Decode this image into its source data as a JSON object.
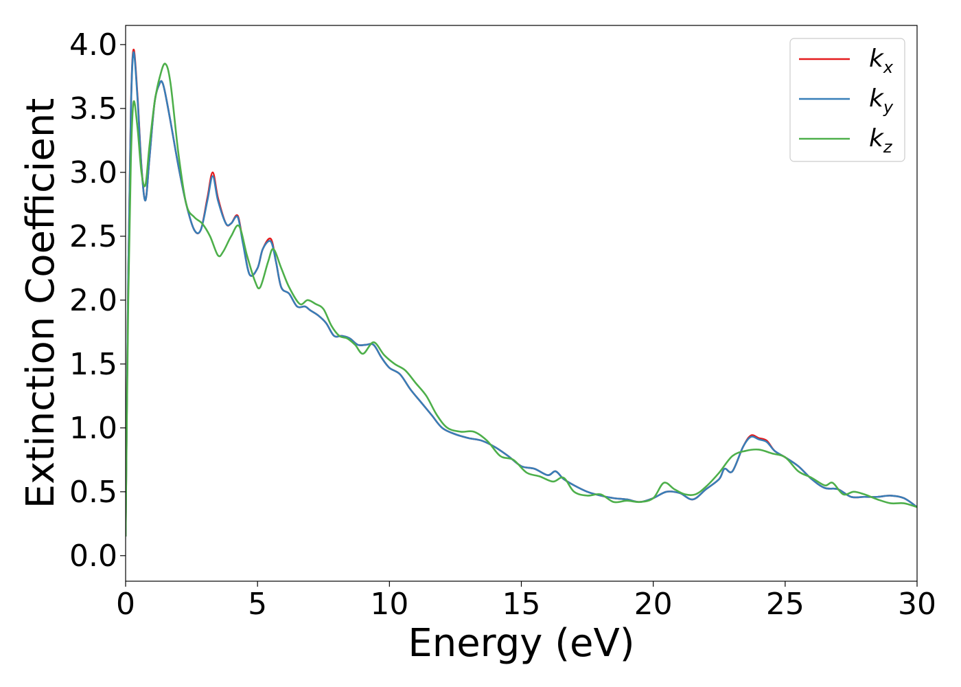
{
  "chart_data": {
    "type": "line",
    "xlabel": "Energy (eV)",
    "ylabel": "Extinction Coefficient",
    "xlim": [
      0,
      30
    ],
    "ylim": [
      -0.2,
      4.15
    ],
    "xticks": [
      0,
      5,
      10,
      15,
      20,
      25,
      30
    ],
    "xtick_labels": [
      "0",
      "5",
      "10",
      "15",
      "20",
      "25",
      "30"
    ],
    "yticks": [
      0.0,
      0.5,
      1.0,
      1.5,
      2.0,
      2.5,
      3.0,
      3.5,
      4.0
    ],
    "ytick_labels": [
      "0.0",
      "0.5",
      "1.0",
      "1.5",
      "2.0",
      "2.5",
      "3.0",
      "3.5",
      "4.0"
    ],
    "grid": false,
    "legend": {
      "placement": "top-right",
      "entries": [
        {
          "base": "k",
          "sub": "x",
          "color": "#e41a1c"
        },
        {
          "base": "k",
          "sub": "y",
          "color": "#377eb8"
        },
        {
          "base": "k",
          "sub": "z",
          "color": "#4daf4a"
        }
      ]
    },
    "series": [
      {
        "name": "k_x",
        "color": "#e41a1c",
        "x": [
          0,
          0.1,
          0.2,
          0.3,
          0.45,
          0.6,
          0.75,
          0.9,
          1.1,
          1.3,
          1.4,
          1.5,
          1.7,
          2.0,
          2.3,
          2.6,
          2.85,
          3.1,
          3.3,
          3.5,
          3.8,
          4.0,
          4.25,
          4.45,
          4.7,
          5.0,
          5.2,
          5.5,
          5.7,
          5.9,
          6.2,
          6.5,
          6.8,
          7.0,
          7.3,
          7.6,
          7.9,
          8.2,
          8.5,
          8.8,
          9.1,
          9.4,
          9.7,
          10.0,
          10.4,
          10.8,
          11.2,
          11.6,
          12.0,
          12.5,
          13.0,
          13.5,
          14.0,
          14.5,
          15.0,
          15.5,
          16.0,
          16.3,
          16.6,
          17.0,
          17.5,
          18.0,
          18.5,
          19.0,
          19.5,
          20.0,
          20.5,
          21.0,
          21.5,
          22.0,
          22.5,
          22.7,
          23.0,
          23.4,
          23.7,
          24.0,
          24.3,
          24.6,
          25.0,
          25.5,
          26.0,
          26.5,
          27.0,
          27.5,
          28.0,
          28.5,
          29.0,
          29.5,
          30.0
        ],
        "y": [
          0.15,
          2.2,
          3.5,
          3.96,
          3.6,
          3.05,
          2.78,
          3.1,
          3.55,
          3.7,
          3.7,
          3.62,
          3.4,
          3.05,
          2.75,
          2.55,
          2.55,
          2.8,
          3.0,
          2.8,
          2.6,
          2.6,
          2.66,
          2.45,
          2.2,
          2.25,
          2.4,
          2.48,
          2.3,
          2.1,
          2.05,
          1.95,
          1.95,
          1.92,
          1.88,
          1.82,
          1.72,
          1.72,
          1.7,
          1.65,
          1.65,
          1.65,
          1.55,
          1.47,
          1.42,
          1.3,
          1.2,
          1.1,
          1.0,
          0.95,
          0.92,
          0.9,
          0.85,
          0.78,
          0.7,
          0.68,
          0.63,
          0.66,
          0.6,
          0.55,
          0.5,
          0.47,
          0.45,
          0.44,
          0.42,
          0.45,
          0.5,
          0.49,
          0.44,
          0.52,
          0.6,
          0.68,
          0.66,
          0.85,
          0.94,
          0.92,
          0.9,
          0.82,
          0.77,
          0.7,
          0.6,
          0.53,
          0.52,
          0.46,
          0.46,
          0.46,
          0.47,
          0.45,
          0.38
        ]
      },
      {
        "name": "k_y",
        "color": "#377eb8",
        "x": [
          0,
          0.1,
          0.2,
          0.3,
          0.45,
          0.6,
          0.75,
          0.9,
          1.1,
          1.3,
          1.4,
          1.5,
          1.7,
          2.0,
          2.3,
          2.6,
          2.85,
          3.1,
          3.3,
          3.5,
          3.8,
          4.0,
          4.25,
          4.45,
          4.7,
          5.0,
          5.2,
          5.5,
          5.7,
          5.9,
          6.2,
          6.5,
          6.8,
          7.0,
          7.3,
          7.6,
          7.9,
          8.2,
          8.5,
          8.8,
          9.1,
          9.4,
          9.7,
          10.0,
          10.4,
          10.8,
          11.2,
          11.6,
          12.0,
          12.5,
          13.0,
          13.5,
          14.0,
          14.5,
          15.0,
          15.5,
          16.0,
          16.3,
          16.6,
          17.0,
          17.5,
          18.0,
          18.5,
          19.0,
          19.5,
          20.0,
          20.5,
          21.0,
          21.5,
          22.0,
          22.5,
          22.7,
          23.0,
          23.4,
          23.7,
          24.0,
          24.3,
          24.6,
          25.0,
          25.5,
          26.0,
          26.5,
          27.0,
          27.5,
          28.0,
          28.5,
          29.0,
          29.5,
          30.0
        ],
        "y": [
          0.15,
          2.2,
          3.48,
          3.94,
          3.58,
          3.04,
          2.78,
          3.1,
          3.55,
          3.7,
          3.7,
          3.62,
          3.4,
          3.05,
          2.75,
          2.55,
          2.55,
          2.78,
          2.97,
          2.78,
          2.6,
          2.6,
          2.65,
          2.44,
          2.2,
          2.25,
          2.4,
          2.46,
          2.3,
          2.1,
          2.05,
          1.95,
          1.95,
          1.92,
          1.88,
          1.82,
          1.72,
          1.72,
          1.7,
          1.65,
          1.65,
          1.65,
          1.55,
          1.47,
          1.42,
          1.3,
          1.2,
          1.1,
          1.0,
          0.95,
          0.92,
          0.9,
          0.85,
          0.78,
          0.7,
          0.68,
          0.63,
          0.66,
          0.6,
          0.55,
          0.5,
          0.47,
          0.45,
          0.44,
          0.42,
          0.45,
          0.5,
          0.49,
          0.44,
          0.52,
          0.6,
          0.68,
          0.66,
          0.85,
          0.93,
          0.91,
          0.89,
          0.82,
          0.77,
          0.7,
          0.6,
          0.53,
          0.52,
          0.46,
          0.46,
          0.46,
          0.47,
          0.45,
          0.38
        ]
      },
      {
        "name": "k_z",
        "color": "#4daf4a",
        "x": [
          0,
          0.1,
          0.2,
          0.3,
          0.45,
          0.6,
          0.75,
          0.9,
          1.1,
          1.3,
          1.5,
          1.7,
          2.0,
          2.3,
          2.6,
          2.9,
          3.2,
          3.5,
          3.7,
          4.0,
          4.3,
          4.6,
          4.9,
          5.1,
          5.4,
          5.6,
          5.9,
          6.2,
          6.6,
          6.9,
          7.2,
          7.5,
          7.8,
          8.1,
          8.4,
          8.7,
          9.0,
          9.4,
          9.8,
          10.2,
          10.6,
          11.0,
          11.4,
          11.8,
          12.2,
          12.7,
          13.2,
          13.7,
          14.2,
          14.7,
          15.2,
          15.7,
          16.2,
          16.6,
          17.0,
          17.5,
          18.0,
          18.5,
          19.0,
          19.5,
          20.0,
          20.4,
          20.8,
          21.2,
          21.6,
          22.0,
          22.5,
          23.0,
          23.5,
          24.0,
          24.5,
          25.0,
          25.5,
          26.0,
          26.5,
          26.8,
          27.2,
          27.6,
          28.0,
          28.5,
          29.0,
          29.5,
          30.0
        ],
        "y": [
          0.15,
          2.0,
          3.1,
          3.55,
          3.35,
          3.0,
          2.9,
          3.2,
          3.55,
          3.75,
          3.85,
          3.7,
          3.15,
          2.75,
          2.65,
          2.6,
          2.5,
          2.35,
          2.38,
          2.5,
          2.58,
          2.35,
          2.15,
          2.1,
          2.3,
          2.4,
          2.25,
          2.1,
          1.97,
          2.0,
          1.97,
          1.93,
          1.8,
          1.72,
          1.7,
          1.65,
          1.58,
          1.67,
          1.57,
          1.5,
          1.45,
          1.35,
          1.25,
          1.1,
          1.0,
          0.97,
          0.97,
          0.9,
          0.78,
          0.75,
          0.65,
          0.62,
          0.58,
          0.61,
          0.5,
          0.47,
          0.48,
          0.42,
          0.43,
          0.42,
          0.45,
          0.57,
          0.52,
          0.48,
          0.48,
          0.54,
          0.65,
          0.78,
          0.82,
          0.83,
          0.8,
          0.77,
          0.66,
          0.61,
          0.55,
          0.57,
          0.48,
          0.5,
          0.48,
          0.44,
          0.41,
          0.41,
          0.38
        ]
      }
    ]
  }
}
